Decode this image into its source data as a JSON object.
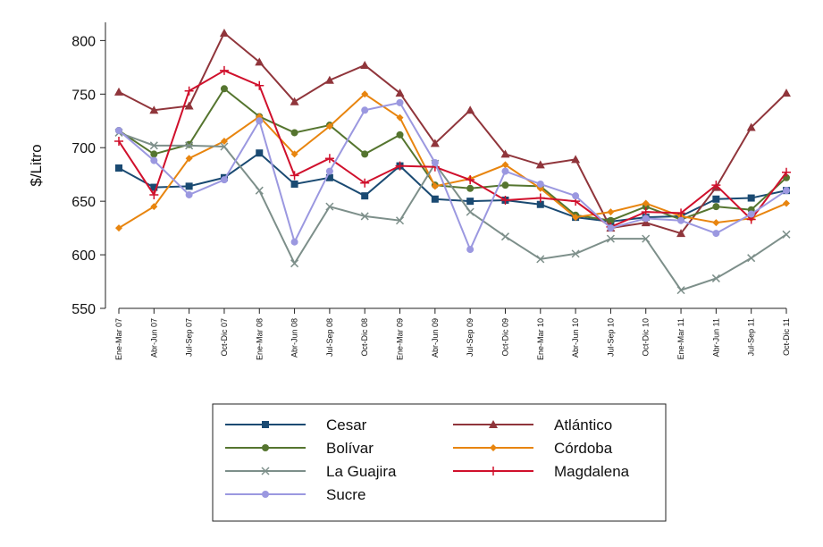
{
  "chart_data": {
    "type": "line",
    "y_label": "$/Litro",
    "categories": [
      "Ene-Mar 07",
      "Abr-Jun 07",
      "Jul-Sep 07",
      "Oct-Dic 07",
      "Ene-Mar 08",
      "Abr-Jun 08",
      "Jul-Sep 08",
      "Oct-Dic 08",
      "Ene-Mar 09",
      "Abr-Jun 09",
      "Jul-Sep 09",
      "Oct-Dic 09",
      "Ene-Mar 10",
      "Abr-Jun 10",
      "Jul-Sep 10",
      "Oct-Dic 10",
      "Ene-Mar 11",
      "Abr-Jun 11",
      "Jul-Sep 11",
      "Oct-Dic 11"
    ],
    "ylim": [
      550,
      817
    ],
    "yticks": [
      550,
      600,
      650,
      700,
      750,
      800
    ],
    "series": [
      {
        "name": "Cesar",
        "color": "#1a4a72",
        "marker": "square",
        "values": [
          681,
          663,
          664,
          672,
          695,
          666,
          672,
          655,
          683,
          652,
          650,
          651,
          647,
          635,
          631,
          635,
          636,
          652,
          653,
          660
        ]
      },
      {
        "name": "Atlántico",
        "color": "#90353b",
        "marker": "triangle",
        "values": [
          752,
          735,
          739,
          807,
          780,
          743,
          763,
          777,
          751,
          704,
          735,
          694,
          684,
          689,
          625,
          630,
          620,
          663,
          719,
          751
        ]
      },
      {
        "name": "Bolívar",
        "color": "#55752f",
        "marker": "circle",
        "values": [
          716,
          694,
          703,
          755,
          729,
          714,
          721,
          694,
          712,
          665,
          662,
          665,
          664,
          637,
          632,
          645,
          633,
          645,
          642,
          672
        ]
      },
      {
        "name": "Córdoba",
        "color": "#e8850f",
        "marker": "diamond",
        "values": [
          625,
          645,
          690,
          706,
          729,
          694,
          720,
          750,
          728,
          664,
          671,
          684,
          662,
          635,
          640,
          648,
          636,
          630,
          634,
          648
        ]
      },
      {
        "name": "La Guajira",
        "color": "#7d8f8a",
        "marker": "x",
        "values": [
          714,
          702,
          702,
          701,
          660,
          592,
          645,
          636,
          632,
          685,
          640,
          617,
          596,
          601,
          615,
          615,
          567,
          578,
          597,
          619
        ]
      },
      {
        "name": "Magdalena",
        "color": "#d0102c",
        "marker": "plus",
        "values": [
          706,
          656,
          753,
          772,
          758,
          674,
          690,
          667,
          683,
          682,
          670,
          651,
          653,
          650,
          626,
          640,
          639,
          665,
          633,
          677
        ]
      },
      {
        "name": "Sucre",
        "color": "#9b98e0",
        "marker": "circle",
        "values": [
          716,
          688,
          656,
          670,
          725,
          612,
          678,
          735,
          742,
          686,
          605,
          678,
          666,
          655,
          625,
          634,
          632,
          620,
          638,
          660
        ]
      }
    ]
  }
}
